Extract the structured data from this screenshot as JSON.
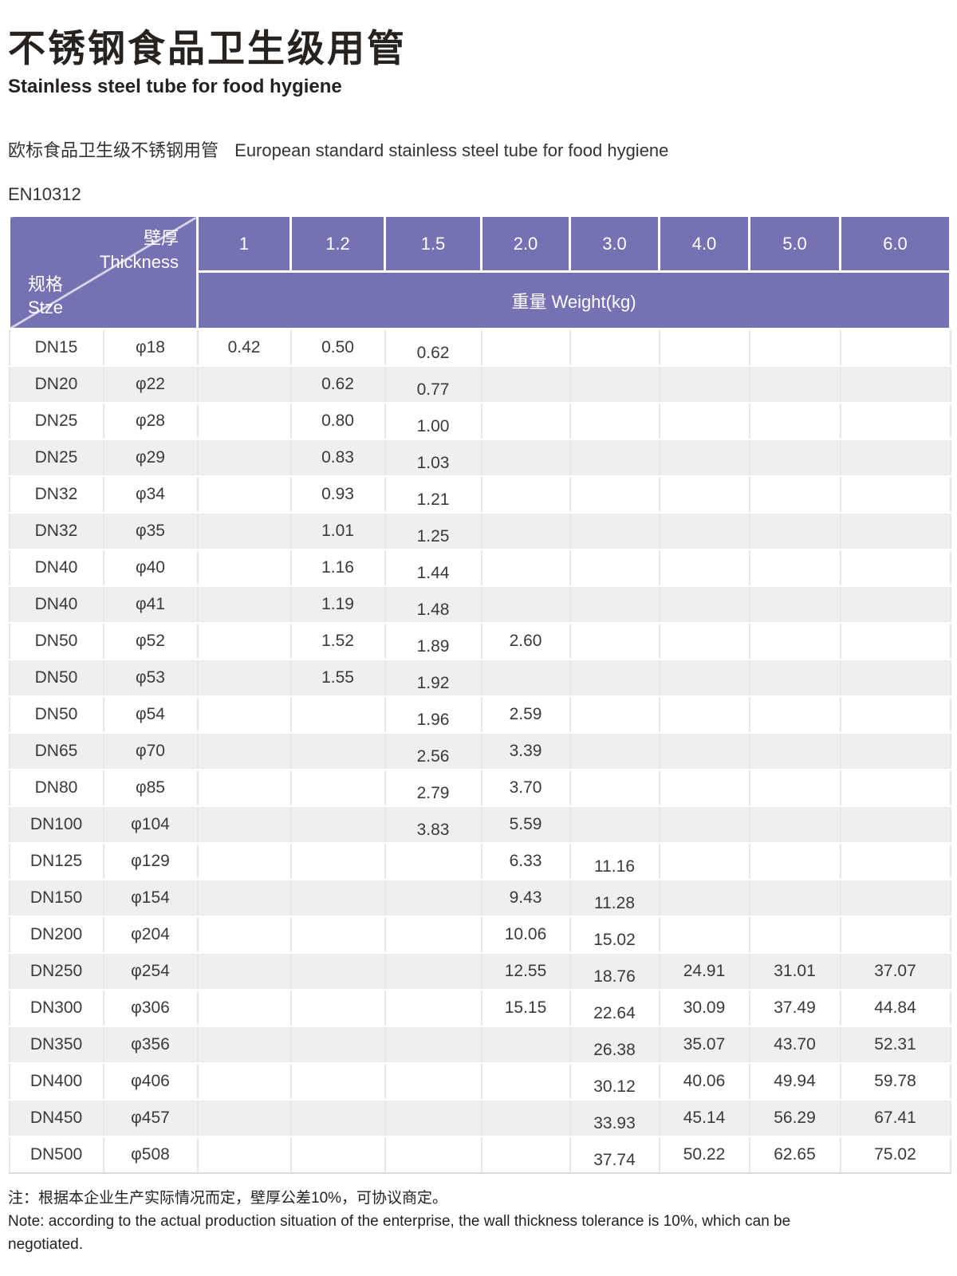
{
  "page": {
    "title_zh": "不锈钢食品卫生级用管",
    "title_en": "Stainless steel tube for food hygiene",
    "subtitle_zh": "欧标食品卫生级不锈钢用管",
    "subtitle_en": "European standard stainless steel tube for food hygiene",
    "standard": "EN10312"
  },
  "colors": {
    "header_purple": "#7572b4",
    "row_alt_gray": "#efefef",
    "diagonal_line": "#e2e1f0"
  },
  "table": {
    "corner": {
      "top_zh": "壁厚",
      "top_en": "Thickness",
      "bottom_zh": "规格",
      "bottom_en": "Stze"
    },
    "thickness_columns": [
      "1",
      "1.2",
      "1.5",
      "2.0",
      "3.0",
      "4.0",
      "5.0",
      "6.0"
    ],
    "weight_header": "重量 Weight(kg)",
    "rows": [
      {
        "size": "DN15",
        "diameter": "φ18",
        "weights": [
          "0.42",
          "0.50",
          "0.62",
          "",
          "",
          "",
          "",
          ""
        ]
      },
      {
        "size": "DN20",
        "diameter": "φ22",
        "weights": [
          "",
          "0.62",
          "0.77",
          "",
          "",
          "",
          "",
          ""
        ]
      },
      {
        "size": "DN25",
        "diameter": "φ28",
        "weights": [
          "",
          "0.80",
          "1.00",
          "",
          "",
          "",
          "",
          ""
        ]
      },
      {
        "size": "DN25",
        "diameter": "φ29",
        "weights": [
          "",
          "0.83",
          "1.03",
          "",
          "",
          "",
          "",
          ""
        ]
      },
      {
        "size": "DN32",
        "diameter": "φ34",
        "weights": [
          "",
          "0.93",
          "1.21",
          "",
          "",
          "",
          "",
          ""
        ]
      },
      {
        "size": "DN32",
        "diameter": "φ35",
        "weights": [
          "",
          "1.01",
          "1.25",
          "",
          "",
          "",
          "",
          ""
        ]
      },
      {
        "size": "DN40",
        "diameter": "φ40",
        "weights": [
          "",
          "1.16",
          "1.44",
          "",
          "",
          "",
          "",
          ""
        ]
      },
      {
        "size": "DN40",
        "diameter": "φ41",
        "weights": [
          "",
          "1.19",
          "1.48",
          "",
          "",
          "",
          "",
          ""
        ]
      },
      {
        "size": "DN50",
        "diameter": "φ52",
        "weights": [
          "",
          "1.52",
          "1.89",
          "2.60",
          "",
          "",
          "",
          ""
        ]
      },
      {
        "size": "DN50",
        "diameter": "φ53",
        "weights": [
          "",
          "1.55",
          "1.92",
          "",
          "",
          "",
          "",
          ""
        ]
      },
      {
        "size": "DN50",
        "diameter": "φ54",
        "weights": [
          "",
          "",
          "1.96",
          "2.59",
          "",
          "",
          "",
          ""
        ]
      },
      {
        "size": "DN65",
        "diameter": "φ70",
        "weights": [
          "",
          "",
          "2.56",
          "3.39",
          "",
          "",
          "",
          ""
        ]
      },
      {
        "size": "DN80",
        "diameter": "φ85",
        "weights": [
          "",
          "",
          "2.79",
          "3.70",
          "",
          "",
          "",
          ""
        ]
      },
      {
        "size": "DN100",
        "diameter": "φ104",
        "weights": [
          "",
          "",
          "3.83",
          "5.59",
          "",
          "",
          "",
          ""
        ]
      },
      {
        "size": "DN125",
        "diameter": "φ129",
        "weights": [
          "",
          "",
          "",
          "6.33",
          "11.16",
          "",
          "",
          ""
        ]
      },
      {
        "size": "DN150",
        "diameter": "φ154",
        "weights": [
          "",
          "",
          "",
          "9.43",
          "11.28",
          "",
          "",
          ""
        ]
      },
      {
        "size": "DN200",
        "diameter": "φ204",
        "weights": [
          "",
          "",
          "",
          "10.06",
          "15.02",
          "",
          "",
          ""
        ]
      },
      {
        "size": "DN250",
        "diameter": "φ254",
        "weights": [
          "",
          "",
          "",
          "12.55",
          "18.76",
          "24.91",
          "31.01",
          "37.07"
        ]
      },
      {
        "size": "DN300",
        "diameter": "φ306",
        "weights": [
          "",
          "",
          "",
          "15.15",
          "22.64",
          "30.09",
          "37.49",
          "44.84"
        ]
      },
      {
        "size": "DN350",
        "diameter": "φ356",
        "weights": [
          "",
          "",
          "",
          "",
          "26.38",
          "35.07",
          "43.70",
          "52.31"
        ]
      },
      {
        "size": "DN400",
        "diameter": "φ406",
        "weights": [
          "",
          "",
          "",
          "",
          "30.12",
          "40.06",
          "49.94",
          "59.78"
        ]
      },
      {
        "size": "DN450",
        "diameter": "φ457",
        "weights": [
          "",
          "",
          "",
          "",
          "33.93",
          "45.14",
          "56.29",
          "67.41"
        ]
      },
      {
        "size": "DN500",
        "diameter": "φ508",
        "weights": [
          "",
          "",
          "",
          "",
          "37.74",
          "50.22",
          "62.65",
          "75.02"
        ]
      }
    ]
  },
  "note": {
    "zh": "注：根据本企业生产实际情况而定，壁厚公差10%，可协议商定。",
    "en": "Note: according to the actual production situation of the enterprise, the wall thickness tolerance is 10%, which can be negotiated."
  }
}
